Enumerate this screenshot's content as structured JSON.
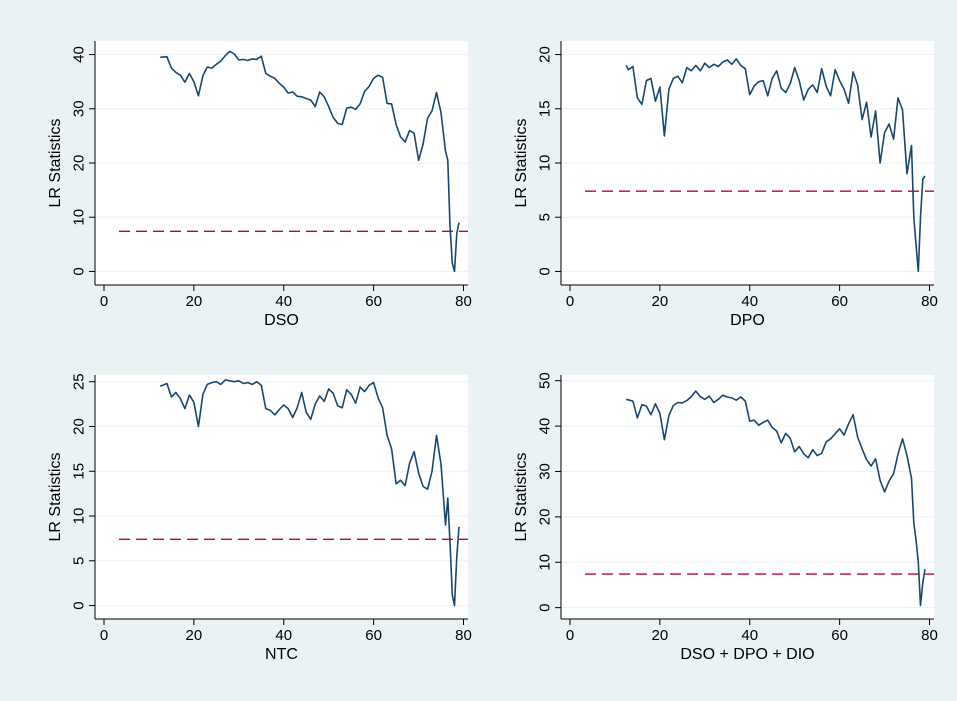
{
  "style": {
    "outer_background": "#eaf2f3",
    "plot_background": "#ffffff",
    "line_color": "#1a476f",
    "threshold_color": "#c10534",
    "grid_color": "#eaf2f3"
  },
  "chart_data": [
    {
      "type": "line",
      "xlabel": "DSO",
      "ylabel": "LR Statistics",
      "xlim": [
        -2,
        81
      ],
      "ylim": [
        -2.5,
        42.5
      ],
      "xticks": [
        0,
        20,
        40,
        60,
        80
      ],
      "yticks": [
        0,
        10,
        20,
        30,
        40
      ],
      "grid": true,
      "threshold": 7.4,
      "series": [
        {
          "x": [
            12.5,
            14,
            15,
            16,
            17,
            18,
            19,
            20,
            21,
            22,
            23,
            24,
            25,
            26,
            27,
            28,
            29,
            30,
            31,
            32,
            33,
            34,
            35,
            36,
            37,
            38,
            39,
            40,
            41,
            42,
            43,
            44,
            45,
            46,
            47,
            48,
            49,
            50,
            51,
            52,
            53,
            54,
            55,
            56,
            57,
            58,
            59,
            60,
            61,
            62,
            63,
            64,
            65,
            66,
            67,
            68,
            69,
            70,
            71,
            72,
            73,
            74,
            75,
            76,
            76.5,
            77,
            77.5,
            78,
            78.5,
            79
          ],
          "y": [
            39.5,
            39.6,
            37.5,
            36.7,
            36.2,
            34.9,
            36.5,
            35.0,
            32.4,
            36.1,
            37.7,
            37.5,
            38.2,
            38.8,
            39.8,
            40.6,
            40.1,
            39.0,
            39.1,
            38.9,
            39.2,
            39.1,
            39.7,
            36.5,
            36.0,
            35.6,
            34.7,
            34.0,
            32.9,
            33.1,
            32.3,
            32.2,
            31.9,
            31.6,
            30.4,
            33.1,
            32.2,
            30.4,
            28.4,
            27.3,
            27.1,
            30.1,
            30.3,
            29.9,
            30.9,
            33.2,
            34.1,
            35.6,
            36.2,
            35.8,
            31.0,
            30.9,
            27.1,
            24.8,
            23.9,
            26.0,
            25.5,
            20.5,
            23.5,
            28.3,
            29.6,
            33.0,
            29.3,
            22.2,
            20.5,
            8.4,
            1.5,
            0.0,
            7.0,
            9.0
          ]
        }
      ]
    },
    {
      "type": "line",
      "xlabel": "DPO",
      "ylabel": "LR Statistics",
      "xlim": [
        -2,
        81
      ],
      "ylim": [
        -1.25,
        21.25
      ],
      "xticks": [
        0,
        20,
        40,
        60,
        80
      ],
      "yticks": [
        0,
        5,
        10,
        15,
        20
      ],
      "grid": true,
      "threshold": 7.4,
      "series": [
        {
          "x": [
            12.5,
            13,
            14,
            15,
            16,
            17,
            18,
            19,
            20,
            21,
            22,
            23,
            24,
            25,
            26,
            27,
            28,
            29,
            30,
            31,
            32,
            33,
            34,
            35,
            36,
            37,
            38,
            39,
            40,
            41,
            42,
            43,
            44,
            45,
            46,
            47,
            48,
            49,
            50,
            51,
            52,
            53,
            54,
            55,
            56,
            57,
            58,
            59,
            60,
            61,
            62,
            63,
            64,
            65,
            66,
            67,
            68,
            69,
            70,
            71,
            72,
            73,
            74,
            75,
            76,
            76.5,
            77,
            77.5,
            78,
            78.5,
            79
          ],
          "y": [
            19.0,
            18.6,
            18.9,
            16.0,
            15.4,
            17.6,
            17.8,
            15.7,
            17.0,
            12.5,
            16.8,
            17.8,
            18.0,
            17.4,
            18.8,
            18.5,
            19.0,
            18.5,
            19.2,
            18.8,
            19.1,
            18.9,
            19.3,
            19.5,
            19.1,
            19.6,
            19.0,
            18.7,
            16.3,
            17.1,
            17.5,
            17.6,
            16.2,
            17.8,
            18.5,
            16.9,
            16.5,
            17.3,
            18.8,
            17.6,
            15.8,
            16.8,
            17.2,
            16.5,
            18.7,
            17.1,
            16.2,
            18.6,
            17.6,
            16.8,
            15.5,
            18.4,
            17.2,
            14.0,
            15.6,
            12.4,
            14.8,
            10.0,
            12.8,
            13.6,
            12.2,
            16.0,
            14.9,
            9.0,
            11.6,
            5.0,
            2.5,
            0.0,
            5.0,
            8.5,
            8.8
          ]
        }
      ]
    },
    {
      "type": "line",
      "xlabel": "NTC",
      "ylabel": "LR Statistics",
      "xlim": [
        -2,
        81
      ],
      "ylim": [
        -1.5,
        25.75
      ],
      "xticks": [
        0,
        20,
        40,
        60,
        80
      ],
      "yticks": [
        0,
        5,
        10,
        15,
        20,
        25
      ],
      "grid": true,
      "threshold": 7.4,
      "series": [
        {
          "x": [
            12.5,
            14,
            15,
            16,
            17,
            18,
            19,
            20,
            21,
            22,
            23,
            24,
            25,
            26,
            27,
            28,
            29,
            30,
            31,
            32,
            33,
            34,
            35,
            36,
            37,
            38,
            39,
            40,
            41,
            42,
            43,
            44,
            45,
            46,
            47,
            48,
            49,
            50,
            51,
            52,
            53,
            54,
            55,
            56,
            57,
            58,
            59,
            60,
            61,
            62,
            63,
            64,
            65,
            66,
            67,
            68,
            69,
            70,
            71,
            72,
            73,
            74,
            75,
            76,
            76.5,
            77,
            77.5,
            78,
            78.5,
            79
          ],
          "y": [
            24.5,
            24.8,
            23.3,
            23.8,
            23.1,
            22.0,
            23.5,
            22.7,
            20.0,
            23.6,
            24.7,
            24.9,
            25.0,
            24.7,
            25.2,
            25.1,
            25.0,
            25.1,
            24.8,
            24.9,
            24.7,
            25.0,
            24.6,
            22.0,
            21.8,
            21.3,
            21.9,
            22.4,
            22.0,
            21.0,
            22.1,
            23.8,
            21.6,
            20.8,
            22.5,
            23.4,
            22.8,
            24.2,
            23.7,
            22.3,
            22.1,
            24.1,
            23.6,
            22.6,
            24.4,
            23.9,
            24.6,
            24.9,
            23.2,
            22.1,
            19.0,
            17.5,
            13.6,
            14.0,
            13.4,
            15.9,
            17.2,
            14.8,
            13.3,
            13.0,
            15.0,
            19.0,
            15.8,
            9.0,
            12.0,
            7.0,
            1.2,
            0.0,
            5.5,
            8.8
          ]
        }
      ]
    },
    {
      "type": "line",
      "xlabel": "DSO + DPO + DIO",
      "ylabel": "LR Statistics",
      "xlim": [
        -2,
        81
      ],
      "ylim": [
        -2.5,
        51.25
      ],
      "xticks": [
        0,
        20,
        40,
        60,
        80
      ],
      "yticks": [
        0,
        10,
        20,
        30,
        40,
        50
      ],
      "grid": true,
      "threshold": 7.4,
      "series": [
        {
          "x": [
            12.5,
            14,
            15,
            16,
            17,
            18,
            19,
            20,
            21,
            22,
            23,
            24,
            25,
            26,
            27,
            28,
            29,
            30,
            31,
            32,
            33,
            34,
            35,
            36,
            37,
            38,
            39,
            40,
            41,
            42,
            43,
            44,
            45,
            46,
            47,
            48,
            49,
            50,
            51,
            52,
            53,
            54,
            55,
            56,
            57,
            58,
            59,
            60,
            61,
            62,
            63,
            64,
            65,
            66,
            67,
            68,
            69,
            70,
            71,
            72,
            73,
            74,
            75,
            76,
            76.5,
            77,
            77.5,
            78,
            78.5,
            79
          ],
          "y": [
            45.9,
            45.5,
            41.8,
            44.7,
            44.4,
            42.5,
            44.9,
            42.8,
            37.0,
            42.3,
            44.5,
            45.2,
            45.1,
            45.6,
            46.5,
            47.7,
            46.5,
            45.9,
            46.6,
            45.2,
            45.9,
            46.8,
            46.4,
            46.2,
            45.7,
            46.4,
            45.5,
            41.1,
            41.3,
            40.2,
            40.8,
            41.3,
            39.7,
            38.9,
            36.3,
            38.4,
            37.3,
            34.3,
            35.5,
            33.9,
            33.0,
            34.8,
            33.5,
            34.0,
            36.5,
            37.2,
            38.3,
            39.4,
            38.0,
            40.5,
            42.5,
            37.6,
            35.0,
            32.6,
            31.2,
            32.8,
            28.0,
            25.5,
            27.9,
            29.5,
            33.8,
            37.2,
            33.5,
            28.5,
            18.7,
            15.0,
            10.0,
            0.5,
            5.5,
            8.5
          ]
        }
      ]
    }
  ]
}
